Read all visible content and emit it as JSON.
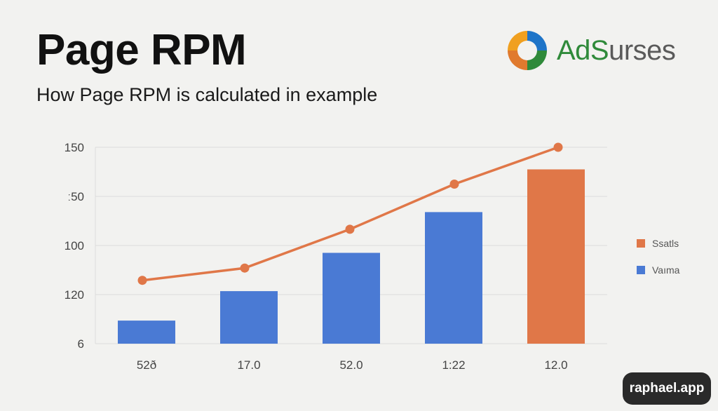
{
  "header": {
    "title": "Page RPM",
    "subtitle": "How Page RPM is calculated in example"
  },
  "logo": {
    "brand_part1": "AdS",
    "brand_part2": "urses"
  },
  "watermark": "raphael.app",
  "colors": {
    "bar": "#4a7ad4",
    "accent": "#e07748",
    "grid": "#dcdcdc"
  },
  "chart_data": {
    "type": "bar",
    "title": "",
    "xlabel": "",
    "ylabel": "",
    "y_tick_labels": [
      "6",
      "120",
      "100",
      "ː50",
      "150"
    ],
    "ylim": [
      0,
      4
    ],
    "grid": true,
    "legend_position": "right",
    "categories": [
      "52ð",
      "17.0",
      "52.0",
      "1:22",
      "12.0"
    ],
    "bars": {
      "values": [
        0.47,
        1.07,
        1.85,
        2.68,
        3.55
      ],
      "colors": [
        "#4a7ad4",
        "#4a7ad4",
        "#4a7ad4",
        "#4a7ad4",
        "#e07748"
      ]
    },
    "line": {
      "values": [
        1.29,
        1.54,
        2.33,
        3.25,
        4.0
      ],
      "color": "#e07748"
    },
    "legend": [
      {
        "label": "Ssatls",
        "color": "#e07748"
      },
      {
        "label": "Vaıma",
        "color": "#4a7ad4"
      }
    ]
  }
}
